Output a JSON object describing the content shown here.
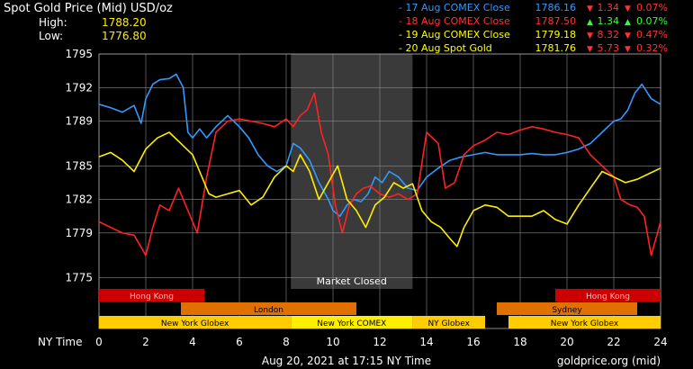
{
  "chart_data": {
    "type": "line",
    "title": "Spot Gold Price (Mid) USD/oz",
    "stats": {
      "high_label": "High:",
      "high_value": "1788.20",
      "low_label": "Low:",
      "low_value": "1776.80"
    },
    "legend": [
      {
        "label": "17 Aug COMEX Close",
        "value": "1786.16",
        "change": "1.34",
        "pct": "0.07%",
        "dir": "down",
        "color": "#3399ff"
      },
      {
        "label": "18 Aug COMEX Close",
        "value": "1787.50",
        "change": "1.34",
        "pct": "0.07%",
        "dir": "up",
        "color": "#ff3333"
      },
      {
        "label": "19 Aug COMEX Close",
        "value": "1779.18",
        "change": "8.32",
        "pct": "0.47%",
        "dir": "down",
        "color": "#ffff00"
      },
      {
        "label": "20 Aug Spot Gold",
        "value": "1781.76",
        "change": "5.73",
        "pct": "0.32%",
        "dir": "down",
        "color": "#ffff00"
      }
    ],
    "xlabel": "NY Time",
    "xlim": [
      0,
      24
    ],
    "xticks": [
      "0",
      "2",
      "4",
      "6",
      "8",
      "10",
      "12",
      "14",
      "16",
      "18",
      "20",
      "22",
      "24"
    ],
    "ylim": [
      1774,
      1795
    ],
    "yticks": [
      "1795",
      "1792",
      "1789",
      "1785",
      "1782",
      "1779",
      "1775"
    ],
    "grid": true,
    "market_closed": {
      "x": [
        8.2,
        13.4
      ],
      "label": "Market Closed"
    },
    "sessions": [
      {
        "name": "Hong Kong",
        "rows": [
          {
            "row": 0,
            "x": [
              0,
              4.5
            ],
            "color": "#cc0000",
            "label": true
          },
          {
            "row": 0,
            "x": [
              19.5,
              24
            ],
            "color": "#cc0000",
            "label": true
          }
        ]
      },
      {
        "name": "London",
        "rows": [
          {
            "row": 1,
            "x": [
              3.5,
              11
            ],
            "color": "#e07000",
            "label": true
          }
        ]
      },
      {
        "name": "Sydney",
        "rows": [
          {
            "row": 1,
            "x": [
              17,
              23
            ],
            "color": "#e07000",
            "label": true
          }
        ]
      },
      {
        "name": "New York Globex",
        "rows": [
          {
            "row": 2,
            "x": [
              0,
              8.2
            ],
            "color": "#ffcc00",
            "label": true
          },
          {
            "row": 2,
            "x": [
              17.5,
              24
            ],
            "color": "#ffcc00",
            "label": true
          }
        ]
      },
      {
        "name": "New York COMEX",
        "rows": [
          {
            "row": 2,
            "x": [
              8.2,
              13.4
            ],
            "color": "#ffee00",
            "label": true
          }
        ]
      },
      {
        "name": "NY Globex",
        "rows": [
          {
            "row": 2,
            "x": [
              13.4,
              16.5
            ],
            "color": "#ffcc00",
            "label": true
          }
        ]
      }
    ],
    "series": [
      {
        "color": "#3399ff",
        "x": [
          0,
          0.5,
          1,
          1.5,
          1.8,
          2,
          2.3,
          2.6,
          3,
          3.3,
          3.6,
          3.8,
          4,
          4.3,
          4.6,
          5,
          5.5,
          6,
          6.4,
          6.8,
          7.2,
          7.6,
          8,
          8.3,
          8.6,
          9,
          9.4,
          9.8,
          10,
          10.3,
          10.6,
          10.9,
          11.2,
          11.5,
          11.8,
          12.1,
          12.4,
          12.8,
          13.2,
          13.6,
          14,
          14.5,
          15,
          15.5,
          16,
          16.5,
          17,
          17.5,
          18,
          18.5,
          19,
          19.5,
          20,
          20.5,
          21,
          21.5,
          22,
          22.3,
          22.6,
          22.9,
          23.2,
          23.6,
          24
        ],
        "y": [
          1790.5,
          1790.2,
          1789.8,
          1790.4,
          1788.8,
          1791,
          1792.3,
          1792.7,
          1792.8,
          1793.2,
          1792,
          1788,
          1787.5,
          1788.3,
          1787.5,
          1788.5,
          1789.5,
          1788.5,
          1787.5,
          1786,
          1785,
          1784.5,
          1785,
          1787,
          1786.6,
          1785.5,
          1783.5,
          1782,
          1781,
          1780.5,
          1781.5,
          1782,
          1781.8,
          1782.5,
          1784,
          1783.5,
          1784.5,
          1784,
          1783,
          1782.8,
          1784,
          1784.8,
          1785.5,
          1785.8,
          1786,
          1786.2,
          1786,
          1786,
          1786,
          1786.1,
          1786,
          1786,
          1786.2,
          1786.5,
          1787,
          1788,
          1789,
          1789.2,
          1790,
          1791.5,
          1792.3,
          1791,
          1790.5
        ]
      },
      {
        "color": "#ff2222",
        "x": [
          0,
          0.5,
          1,
          1.5,
          2,
          2.3,
          2.6,
          3,
          3.4,
          3.8,
          4.2,
          4.6,
          5,
          5.5,
          6,
          6.5,
          7,
          7.5,
          8,
          8.3,
          8.6,
          8.9,
          9.2,
          9.5,
          9.8,
          10.1,
          10.4,
          10.7,
          11,
          11.3,
          11.6,
          12,
          12.4,
          12.8,
          13.2,
          13.6,
          14,
          14.5,
          14.8,
          15.2,
          15.6,
          16,
          16.5,
          17,
          17.5,
          18,
          18.5,
          19,
          19.5,
          20,
          20.5,
          21,
          21.5,
          22,
          22.3,
          22.7,
          23,
          23.3,
          23.6,
          24
        ],
        "y": [
          1780,
          1779.5,
          1779,
          1778.8,
          1777,
          1779.5,
          1781.5,
          1781,
          1783,
          1781,
          1779,
          1784,
          1788,
          1789,
          1789.2,
          1789,
          1788.8,
          1788.5,
          1789.2,
          1788.5,
          1789.5,
          1790,
          1791.5,
          1788,
          1786,
          1781.5,
          1779,
          1781.5,
          1782.5,
          1783,
          1783.2,
          1782.5,
          1782.2,
          1782.5,
          1782,
          1782.5,
          1788,
          1787,
          1783,
          1783.5,
          1786,
          1786.8,
          1787.3,
          1788,
          1787.8,
          1788.2,
          1788.5,
          1788.3,
          1788,
          1787.8,
          1787.5,
          1786,
          1785,
          1784,
          1782,
          1781.5,
          1781.3,
          1780.5,
          1777,
          1780
        ]
      },
      {
        "color": "#ffee00",
        "x": [
          0,
          0.5,
          1,
          1.5,
          2,
          2.5,
          3,
          3.5,
          4,
          4.3,
          4.7,
          5,
          5.5,
          6,
          6.5,
          7,
          7.5,
          8,
          8.3,
          8.6,
          9,
          9.4,
          9.8,
          10.2,
          10.6,
          11,
          11.4,
          11.8,
          12.2,
          12.6,
          13,
          13.4,
          13.8,
          14.2,
          14.6,
          15,
          15.3,
          15.6,
          16,
          16.5,
          17,
          17.5,
          18,
          18.5,
          19,
          19.5,
          20,
          20.5,
          21,
          21.5,
          22,
          22.5,
          23,
          23.5,
          24
        ],
        "y": [
          1785.8,
          1786.2,
          1785.5,
          1784.5,
          1786.5,
          1787.5,
          1788,
          1787,
          1786,
          1784.5,
          1782.5,
          1782.2,
          1782.5,
          1782.8,
          1781.5,
          1782.2,
          1784,
          1785,
          1784.5,
          1786,
          1784.5,
          1782,
          1783.5,
          1785,
          1782,
          1781,
          1779.5,
          1781.5,
          1782.2,
          1783.5,
          1783,
          1783.4,
          1781,
          1780,
          1779.5,
          1778.5,
          1777.8,
          1779.5,
          1781,
          1781.5,
          1781.3,
          1780.5,
          1780.5,
          1780.5,
          1781,
          1780.2,
          1779.8,
          1781.5,
          1783,
          1784.5,
          1784,
          1783.5,
          1783.8,
          1784.3,
          1784.8
        ]
      }
    ],
    "stamp": "Aug 20, 2021 at 17:15 NY Time",
    "source": "goldprice.org (mid)"
  }
}
